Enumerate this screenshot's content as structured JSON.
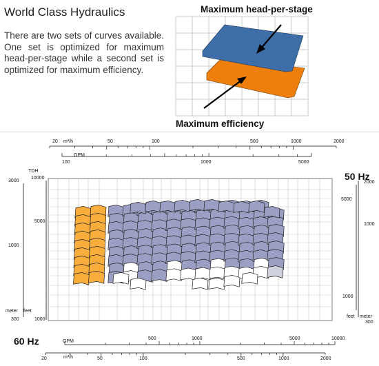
{
  "header": {
    "title": "World Class Hydraulics",
    "intro": "There are two sets of curves available. One set is optimized for maximum head-per-stage while a second set is optimized for maximum efficiency."
  },
  "illustration": {
    "label_top": "Maximum head-per-stage",
    "label_bottom": "Maximum efficiency",
    "colors": {
      "head_plane": "#3d6ea8",
      "efficiency_plane": "#ef7f0c"
    }
  },
  "chart": {
    "freq_top": "50 Hz",
    "freq_bottom": "60 Hz",
    "top_m3h_unit": "m³/h",
    "top_m3h_ticks": [
      "20",
      "50",
      "100",
      "500",
      "1000",
      "2000"
    ],
    "top_gpm_unit": "GPM",
    "top_gpm_ticks": [
      "100",
      "1000",
      "5000"
    ],
    "bottom_gpm_unit": "GPM",
    "bottom_gpm_ticks": [
      "500",
      "1000",
      "5000",
      "10000"
    ],
    "bottom_m3h_unit": "m³/h",
    "bottom_m3h_ticks": [
      "20",
      "50",
      "100",
      "500",
      "1000",
      "2000"
    ],
    "tdh_label": "TDH",
    "left_feet_ticks": [
      "10000",
      "5000",
      "1000"
    ],
    "left_meter_ticks": [
      "3000",
      "1000",
      "300"
    ],
    "left_meter_unit": "meter",
    "left_feet_unit": "feet",
    "right_meter_ticks": [
      "2000",
      "1000",
      "300"
    ],
    "right_feet_ticks": [
      "5000",
      "1000"
    ],
    "right_feet_unit": "feet",
    "right_meter_unit": "meter",
    "colors": {
      "orange": "#f9ad3c",
      "lavender": "#9c9fc4",
      "white": "#ffffff",
      "light": "#cfd1de"
    }
  }
}
